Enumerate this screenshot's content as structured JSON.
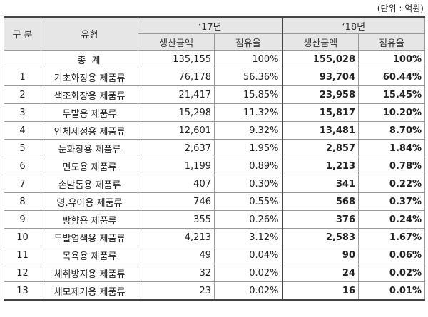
{
  "unit_note": "(단위 : 억원)",
  "header": {
    "gubun": "구 분",
    "type": "유형",
    "y17": "‘17년",
    "y18": "‘18년",
    "production": "생산금액",
    "share": "점유율"
  },
  "rows": [
    {
      "no": "",
      "type": "총 계",
      "p17": "135,155",
      "s17": "100%",
      "p18": "155,028",
      "s18": "100%"
    },
    {
      "no": "1",
      "type": "기초화장용 제품류",
      "p17": "76,178",
      "s17": "56.36%",
      "p18": "93,704",
      "s18": "60.44%"
    },
    {
      "no": "2",
      "type": "색조화장용 제품류",
      "p17": "21,417",
      "s17": "15.85%",
      "p18": "23,958",
      "s18": "15.45%"
    },
    {
      "no": "3",
      "type": "두발용 제품류",
      "p17": "15,298",
      "s17": "11.32%",
      "p18": "15,817",
      "s18": "10.20%"
    },
    {
      "no": "4",
      "type": "인체세정용 제품류",
      "p17": "12,601",
      "s17": "9.32%",
      "p18": "13,481",
      "s18": "8.70%"
    },
    {
      "no": "5",
      "type": "눈화장용 제품류",
      "p17": "2,637",
      "s17": "1.95%",
      "p18": "2,857",
      "s18": "1.84%"
    },
    {
      "no": "6",
      "type": "면도용 제품류",
      "p17": "1,199",
      "s17": "0.89%",
      "p18": "1,213",
      "s18": "0.78%"
    },
    {
      "no": "7",
      "type": "손발톱용 제품류",
      "p17": "407",
      "s17": "0.30%",
      "p18": "341",
      "s18": "0.22%"
    },
    {
      "no": "8",
      "type": "영.유아용 제품류",
      "p17": "746",
      "s17": "0.55%",
      "p18": "568",
      "s18": "0.37%"
    },
    {
      "no": "9",
      "type": "방향용 제품류",
      "p17": "355",
      "s17": "0.26%",
      "p18": "376",
      "s18": "0.24%"
    },
    {
      "no": "10",
      "type": "두발염색용 제품류",
      "p17": "4,213",
      "s17": "3.12%",
      "p18": "2,583",
      "s18": "1.67%"
    },
    {
      "no": "11",
      "type": "목욕용 제품류",
      "p17": "49",
      "s17": "0.04%",
      "p18": "90",
      "s18": "0.06%"
    },
    {
      "no": "12",
      "type": "체취방지용 제품류",
      "p17": "32",
      "s17": "0.02%",
      "p18": "24",
      "s18": "0.02%"
    },
    {
      "no": "13",
      "type": "체모제거용 제품류",
      "p17": "23",
      "s17": "0.02%",
      "p18": "16",
      "s18": "0.01%"
    }
  ]
}
